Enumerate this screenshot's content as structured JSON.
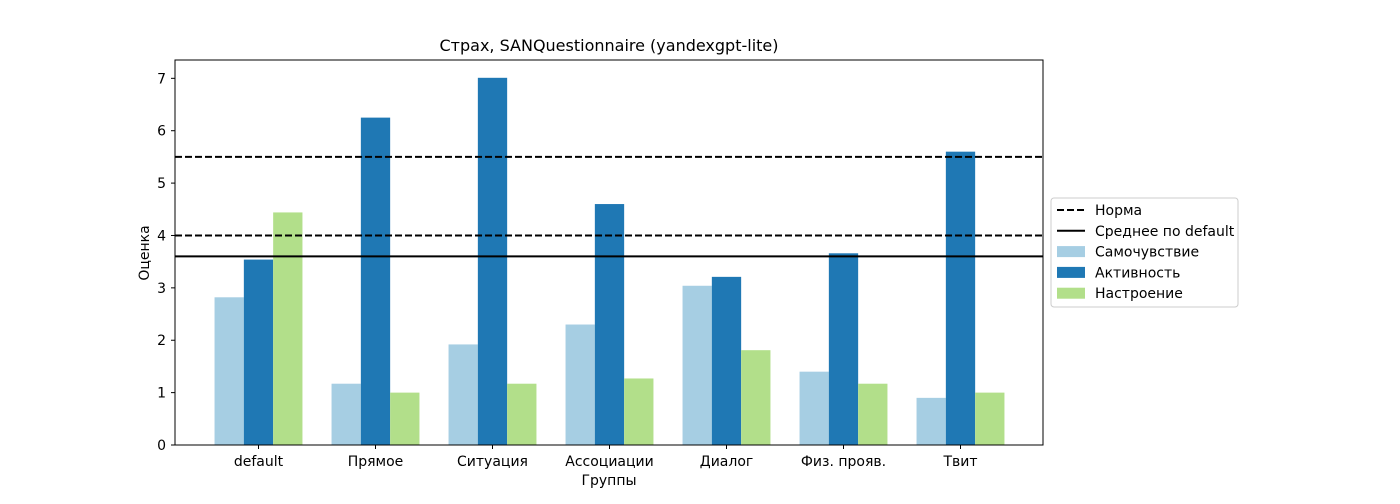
{
  "chart_data": {
    "type": "bar",
    "title": "Страх, SANQuestionnaire (yandexgpt-lite)",
    "xlabel": "Группы",
    "ylabel": "Оценка",
    "categories": [
      "default",
      "Прямое",
      "Ситуация",
      "Ассоциации",
      "Диалог",
      "Физ. прояв.",
      "Твит"
    ],
    "series": [
      {
        "name": "Самочувствие",
        "color": "#a6cee3",
        "values": [
          2.82,
          1.17,
          1.92,
          2.3,
          3.04,
          1.4,
          0.9
        ]
      },
      {
        "name": "Активность",
        "color": "#1f78b4",
        "values": [
          3.54,
          6.25,
          7.01,
          4.6,
          3.21,
          3.66,
          5.6
        ]
      },
      {
        "name": "Настроение",
        "color": "#b2df8a",
        "values": [
          4.44,
          1.0,
          1.17,
          1.27,
          1.81,
          1.17,
          1.0
        ]
      }
    ],
    "reference_lines": [
      {
        "name": "Норма",
        "style": "dashed",
        "color": "#000000",
        "values": [
          4.0,
          5.5
        ]
      },
      {
        "name": "Среднее по default",
        "style": "solid",
        "color": "#000000",
        "values": [
          3.6
        ]
      }
    ],
    "ylim": [
      0,
      7.35
    ],
    "yticks": [
      "0",
      "1",
      "2",
      "3",
      "4",
      "5",
      "6",
      "7"
    ],
    "grid": false,
    "legend_position": "right-outside",
    "legend_entries": [
      "Норма",
      "Среднее по default",
      "Самочувствие",
      "Активность",
      "Настроение"
    ]
  }
}
